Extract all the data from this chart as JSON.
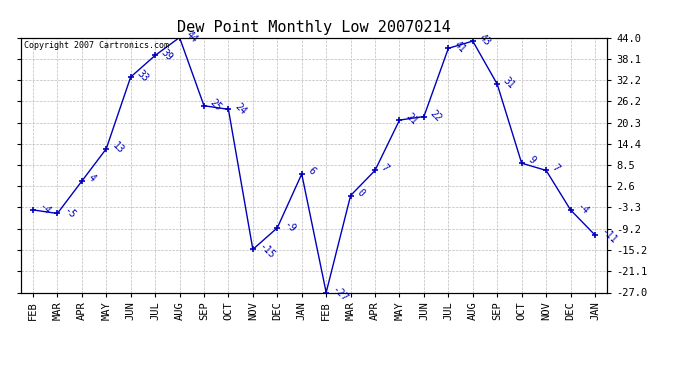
{
  "title": "Dew Point Monthly Low 20070214",
  "copyright": "Copyright 2007 Cartronics.com",
  "x_labels": [
    "FEB",
    "MAR",
    "APR",
    "MAY",
    "JUN",
    "JUL",
    "AUG",
    "SEP",
    "OCT",
    "NOV",
    "DEC",
    "JAN",
    "FEB",
    "MAR",
    "APR",
    "MAY",
    "JUN",
    "JUL",
    "AUG",
    "SEP",
    "OCT",
    "NOV",
    "DEC",
    "JAN"
  ],
  "y_values": [
    -4,
    -5,
    4,
    13,
    33,
    39,
    44,
    25,
    24,
    -15,
    -9,
    6,
    -27,
    0,
    7,
    21,
    22,
    41,
    43,
    31,
    9,
    7,
    -4,
    -11
  ],
  "y_ticks": [
    44.0,
    38.1,
    32.2,
    26.2,
    20.3,
    14.4,
    8.5,
    2.6,
    -3.3,
    -9.2,
    -15.2,
    -21.1,
    -27.0
  ],
  "ylim": [
    -27.0,
    44.0
  ],
  "line_color": "#0000bb",
  "bg_color": "#ffffff",
  "grid_color": "#bbbbbb",
  "title_fontsize": 11,
  "label_fontsize": 7.5,
  "annotation_fontsize": 7,
  "annotation_rotation": 315
}
